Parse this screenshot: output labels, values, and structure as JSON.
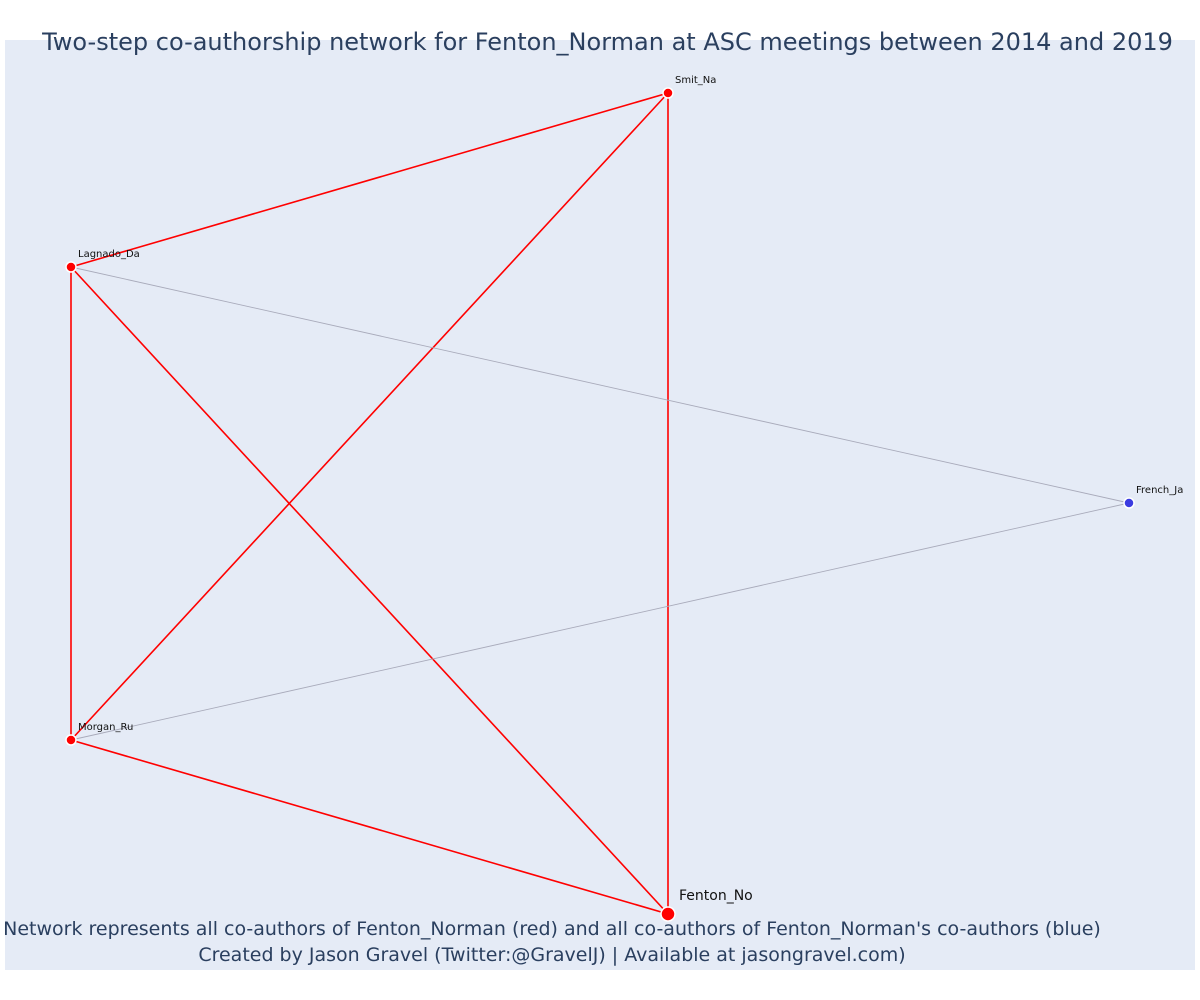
{
  "title": "Two-step co-authorship network for Fenton_Norman at ASC meetings between 2014 and 2019",
  "caption": {
    "line1": "Network represents all co-authors of Fenton_Norman (red) and all co-authors of Fenton_Norman's co-authors (blue)",
    "line2": "Created by Jason Gravel (Twitter:@GravelJ) | Available at jasongravel.com)"
  },
  "colors": {
    "background": "#e5ebf6",
    "direct": "#ff0000",
    "two_step_node": "#3b3be0",
    "two_step_edge": "#a9abbb",
    "text": "#2a3f5f"
  },
  "nodes": [
    {
      "id": "Smit_Na",
      "label": "Smit_Na",
      "group": "direct",
      "focal": false
    },
    {
      "id": "Lagnado_Da",
      "label": "Lagnado_Da",
      "group": "direct",
      "focal": false
    },
    {
      "id": "French_Ja",
      "label": "French_Ja",
      "group": "two-step",
      "focal": false
    },
    {
      "id": "Morgan_Ru",
      "label": "Morgan_Ru",
      "group": "direct",
      "focal": false
    },
    {
      "id": "Fenton_No",
      "label": "Fenton_No",
      "group": "direct",
      "focal": true
    }
  ],
  "edges": [
    {
      "source": "Lagnado_Da",
      "target": "Smit_Na",
      "group": "direct"
    },
    {
      "source": "Smit_Na",
      "target": "Morgan_Ru",
      "group": "direct"
    },
    {
      "source": "Smit_Na",
      "target": "Fenton_No",
      "group": "direct"
    },
    {
      "source": "Lagnado_Da",
      "target": "Morgan_Ru",
      "group": "direct"
    },
    {
      "source": "Lagnado_Da",
      "target": "Fenton_No",
      "group": "direct"
    },
    {
      "source": "Morgan_Ru",
      "target": "Fenton_No",
      "group": "direct"
    },
    {
      "source": "Lagnado_Da",
      "target": "French_Ja",
      "group": "two-step"
    },
    {
      "source": "Morgan_Ru",
      "target": "French_Ja",
      "group": "two-step"
    }
  ]
}
